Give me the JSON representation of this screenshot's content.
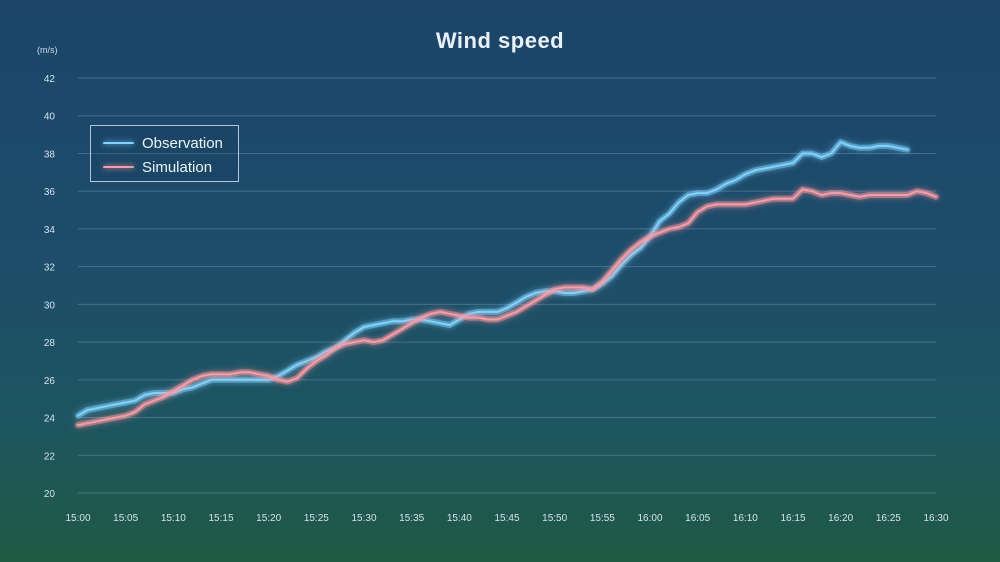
{
  "chart_data": {
    "type": "line",
    "title": "Wind speed",
    "unit_label": "(m/s)",
    "ylim": [
      20,
      42
    ],
    "yticks": [
      20,
      22,
      24,
      26,
      28,
      30,
      32,
      34,
      36,
      38,
      40,
      42
    ],
    "xticks": [
      "15:00",
      "15:05",
      "15:10",
      "15:15",
      "15:20",
      "15:25",
      "15:30",
      "15:35",
      "15:40",
      "15:45",
      "15:50",
      "15:55",
      "16:00",
      "16:05",
      "16:10",
      "16:15",
      "16:20",
      "16:25",
      "16:30"
    ],
    "xlim": [
      "15:00",
      "16:30"
    ],
    "grid": true,
    "legend_position": "top-left",
    "series": [
      {
        "name": "Observation",
        "color": "#7fd3ff",
        "points": [
          [
            "15:00",
            24.1
          ],
          [
            "15:01",
            24.4
          ],
          [
            "15:02",
            24.5
          ],
          [
            "15:03",
            24.6
          ],
          [
            "15:04",
            24.7
          ],
          [
            "15:05",
            24.8
          ],
          [
            "15:06",
            24.9
          ],
          [
            "15:07",
            25.2
          ],
          [
            "15:08",
            25.3
          ],
          [
            "15:09",
            25.3
          ],
          [
            "15:10",
            25.3
          ],
          [
            "15:11",
            25.5
          ],
          [
            "15:12",
            25.6
          ],
          [
            "15:13",
            25.8
          ],
          [
            "15:14",
            26.0
          ],
          [
            "15:15",
            26.0
          ],
          [
            "15:16",
            26.0
          ],
          [
            "15:17",
            26.0
          ],
          [
            "15:18",
            26.0
          ],
          [
            "15:19",
            26.0
          ],
          [
            "15:20",
            26.0
          ],
          [
            "15:21",
            26.2
          ],
          [
            "15:22",
            26.5
          ],
          [
            "15:23",
            26.8
          ],
          [
            "15:24",
            27.0
          ],
          [
            "15:25",
            27.2
          ],
          [
            "15:26",
            27.5
          ],
          [
            "15:27",
            27.7
          ],
          [
            "15:28",
            28.1
          ],
          [
            "15:29",
            28.5
          ],
          [
            "15:30",
            28.8
          ],
          [
            "15:31",
            28.9
          ],
          [
            "15:32",
            29.0
          ],
          [
            "15:33",
            29.1
          ],
          [
            "15:34",
            29.1
          ],
          [
            "15:35",
            29.2
          ],
          [
            "15:36",
            29.2
          ],
          [
            "15:37",
            29.1
          ],
          [
            "15:38",
            29.0
          ],
          [
            "15:39",
            28.9
          ],
          [
            "15:40",
            29.2
          ],
          [
            "15:41",
            29.5
          ],
          [
            "15:42",
            29.6
          ],
          [
            "15:43",
            29.6
          ],
          [
            "15:44",
            29.6
          ],
          [
            "15:45",
            29.8
          ],
          [
            "15:46",
            30.1
          ],
          [
            "15:47",
            30.4
          ],
          [
            "15:48",
            30.6
          ],
          [
            "15:49",
            30.7
          ],
          [
            "15:50",
            30.7
          ],
          [
            "15:51",
            30.6
          ],
          [
            "15:52",
            30.6
          ],
          [
            "15:53",
            30.7
          ],
          [
            "15:54",
            30.8
          ],
          [
            "15:55",
            31.1
          ],
          [
            "15:56",
            31.5
          ],
          [
            "15:57",
            32.1
          ],
          [
            "15:58",
            32.6
          ],
          [
            "15:59",
            33.0
          ],
          [
            "16:00",
            33.6
          ],
          [
            "16:01",
            34.4
          ],
          [
            "16:02",
            34.8
          ],
          [
            "16:03",
            35.4
          ],
          [
            "16:04",
            35.8
          ],
          [
            "16:05",
            35.9
          ],
          [
            "16:06",
            35.9
          ],
          [
            "16:07",
            36.1
          ],
          [
            "16:08",
            36.4
          ],
          [
            "16:09",
            36.6
          ],
          [
            "16:10",
            36.9
          ],
          [
            "16:11",
            37.1
          ],
          [
            "16:12",
            37.2
          ],
          [
            "16:13",
            37.3
          ],
          [
            "16:14",
            37.4
          ],
          [
            "16:15",
            37.5
          ],
          [
            "16:16",
            38.0
          ],
          [
            "16:17",
            38.0
          ],
          [
            "16:18",
            37.8
          ],
          [
            "16:19",
            38.0
          ],
          [
            "16:20",
            38.6
          ],
          [
            "16:21",
            38.4
          ],
          [
            "16:22",
            38.3
          ],
          [
            "16:23",
            38.3
          ],
          [
            "16:24",
            38.4
          ],
          [
            "16:25",
            38.4
          ],
          [
            "16:26",
            38.3
          ],
          [
            "16:27",
            38.2
          ]
        ]
      },
      {
        "name": "Simulation",
        "color": "#ff9aa2",
        "points": [
          [
            "15:00",
            23.6
          ],
          [
            "15:01",
            23.7
          ],
          [
            "15:02",
            23.8
          ],
          [
            "15:03",
            23.9
          ],
          [
            "15:04",
            24.0
          ],
          [
            "15:05",
            24.1
          ],
          [
            "15:06",
            24.3
          ],
          [
            "15:07",
            24.7
          ],
          [
            "15:08",
            24.9
          ],
          [
            "15:09",
            25.1
          ],
          [
            "15:10",
            25.4
          ],
          [
            "15:11",
            25.7
          ],
          [
            "15:12",
            26.0
          ],
          [
            "15:13",
            26.2
          ],
          [
            "15:14",
            26.3
          ],
          [
            "15:15",
            26.3
          ],
          [
            "15:16",
            26.3
          ],
          [
            "15:17",
            26.4
          ],
          [
            "15:18",
            26.4
          ],
          [
            "15:19",
            26.3
          ],
          [
            "15:20",
            26.2
          ],
          [
            "15:21",
            26.0
          ],
          [
            "15:22",
            25.9
          ],
          [
            "15:23",
            26.1
          ],
          [
            "15:24",
            26.6
          ],
          [
            "15:25",
            27.0
          ],
          [
            "15:26",
            27.3
          ],
          [
            "15:27",
            27.7
          ],
          [
            "15:28",
            27.9
          ],
          [
            "15:29",
            28.0
          ],
          [
            "15:30",
            28.1
          ],
          [
            "15:31",
            28.0
          ],
          [
            "15:32",
            28.1
          ],
          [
            "15:33",
            28.4
          ],
          [
            "15:34",
            28.7
          ],
          [
            "15:35",
            29.0
          ],
          [
            "15:36",
            29.3
          ],
          [
            "15:37",
            29.5
          ],
          [
            "15:38",
            29.6
          ],
          [
            "15:39",
            29.5
          ],
          [
            "15:40",
            29.4
          ],
          [
            "15:41",
            29.3
          ],
          [
            "15:42",
            29.3
          ],
          [
            "15:43",
            29.2
          ],
          [
            "15:44",
            29.2
          ],
          [
            "15:45",
            29.4
          ],
          [
            "15:46",
            29.6
          ],
          [
            "15:47",
            29.9
          ],
          [
            "15:48",
            30.2
          ],
          [
            "15:49",
            30.5
          ],
          [
            "15:50",
            30.8
          ],
          [
            "15:51",
            30.9
          ],
          [
            "15:52",
            30.9
          ],
          [
            "15:53",
            30.9
          ],
          [
            "15:54",
            30.8
          ],
          [
            "15:55",
            31.2
          ],
          [
            "15:56",
            31.8
          ],
          [
            "15:57",
            32.4
          ],
          [
            "15:58",
            32.9
          ],
          [
            "15:59",
            33.3
          ],
          [
            "16:00",
            33.6
          ],
          [
            "16:01",
            33.8
          ],
          [
            "16:02",
            34.0
          ],
          [
            "16:03",
            34.1
          ],
          [
            "16:04",
            34.3
          ],
          [
            "16:05",
            34.9
          ],
          [
            "16:06",
            35.2
          ],
          [
            "16:07",
            35.3
          ],
          [
            "16:08",
            35.3
          ],
          [
            "16:09",
            35.3
          ],
          [
            "16:10",
            35.3
          ],
          [
            "16:11",
            35.4
          ],
          [
            "16:12",
            35.5
          ],
          [
            "16:13",
            35.6
          ],
          [
            "16:14",
            35.6
          ],
          [
            "16:15",
            35.6
          ],
          [
            "16:16",
            36.1
          ],
          [
            "16:17",
            36.0
          ],
          [
            "16:18",
            35.8
          ],
          [
            "16:19",
            35.9
          ],
          [
            "16:20",
            35.9
          ],
          [
            "16:21",
            35.8
          ],
          [
            "16:22",
            35.7
          ],
          [
            "16:23",
            35.8
          ],
          [
            "16:24",
            35.8
          ],
          [
            "16:25",
            35.8
          ],
          [
            "16:26",
            35.8
          ],
          [
            "16:27",
            35.8
          ],
          [
            "16:28",
            36.0
          ],
          [
            "16:29",
            35.9
          ],
          [
            "16:30",
            35.7
          ]
        ]
      }
    ]
  }
}
